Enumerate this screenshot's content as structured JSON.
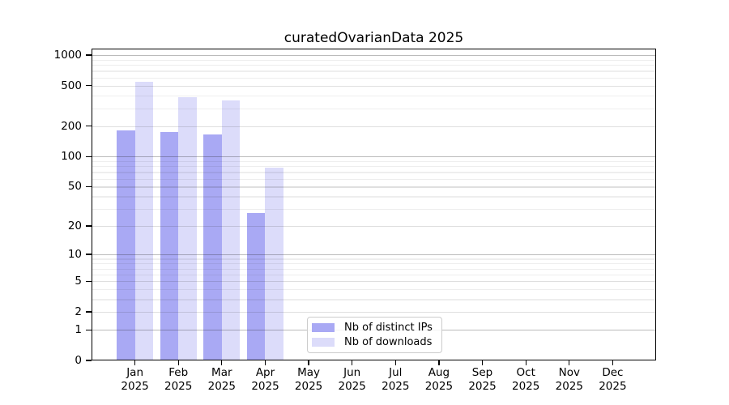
{
  "chart_data": {
    "type": "bar",
    "title": "curatedOvarianData 2025",
    "categories": [
      "Jan 2025",
      "Feb 2025",
      "Mar 2025",
      "Apr 2025",
      "May 2025",
      "Jun 2025",
      "Jul 2025",
      "Aug 2025",
      "Sep 2025",
      "Oct 2025",
      "Nov 2025",
      "Dec 2025"
    ],
    "series": [
      {
        "name": "Nb of distinct IPs",
        "color": "#a9a9f4",
        "values": [
          180,
          175,
          165,
          27,
          null,
          null,
          null,
          null,
          null,
          null,
          null,
          null
        ]
      },
      {
        "name": "Nb of downloads",
        "color": "#dcdcfa",
        "values": [
          545,
          385,
          355,
          77,
          null,
          null,
          null,
          null,
          null,
          null,
          null,
          null
        ]
      }
    ],
    "xlabel": "",
    "ylabel": "",
    "yscale": "log10(value+1)",
    "y_ticks_labeled": [
      0,
      1,
      2,
      5,
      10,
      20,
      50,
      100,
      200,
      500,
      1000
    ],
    "y_ticks_minor": [
      3,
      4,
      6,
      7,
      8,
      9,
      30,
      40,
      60,
      70,
      80,
      90,
      300,
      400,
      600,
      700,
      800,
      900
    ],
    "ylim": [
      0,
      1160
    ],
    "grid": "horizontal",
    "legend_position": "inside-lower-center",
    "frame_color": "#000000",
    "background_color": "#ffffff"
  }
}
